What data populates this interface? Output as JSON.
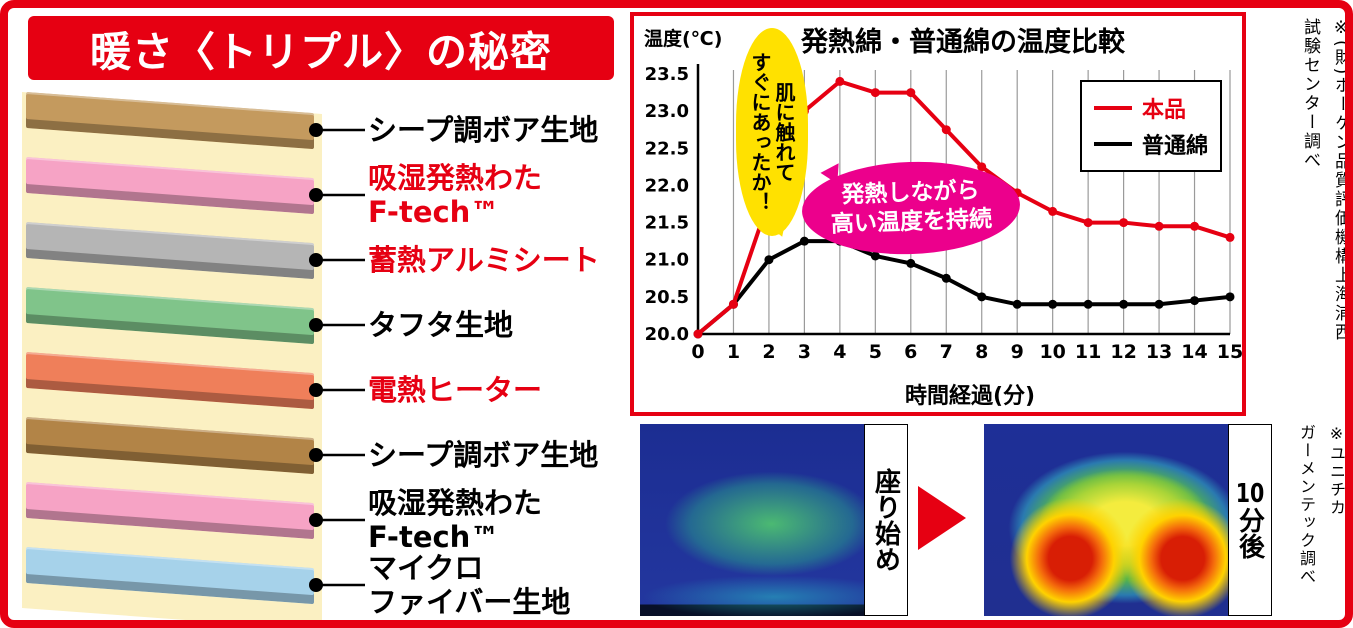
{
  "colors": {
    "accent_red": "#e60012",
    "cream_backing": "#fbf0c2",
    "yellow_bubble": "#ffe100",
    "pink_bubble": "#ec008c"
  },
  "header": {
    "title": "暖さ〈トリプル〉の秘密"
  },
  "layer_diagram": {
    "layers": [
      {
        "lines": [
          "シープ調ボア生地"
        ],
        "color": "#c49a5e",
        "label_color": "#000000"
      },
      {
        "lines": [
          "吸湿発熱わた",
          "F-tech™"
        ],
        "color": "#f6a3c5",
        "label_color": "#e60012"
      },
      {
        "lines": [
          "蓄熱アルミシート"
        ],
        "color": "#b5b5b5",
        "label_color": "#e60012"
      },
      {
        "lines": [
          "タフタ生地"
        ],
        "color": "#80c48a",
        "label_color": "#000000"
      },
      {
        "lines": [
          "電熱ヒーター"
        ],
        "color": "#ef7f5a",
        "label_color": "#e60012"
      },
      {
        "lines": [
          "シープ調ボア生地"
        ],
        "color": "#b28447",
        "label_color": "#000000"
      },
      {
        "lines": [
          "吸湿発熱わた",
          "F-tech™"
        ],
        "color": "#f6a3c5",
        "label_color": "#000000"
      },
      {
        "lines": [
          "マイクロ",
          "ファイバー生地"
        ],
        "color": "#a6d2ea",
        "label_color": "#000000"
      }
    ]
  },
  "chart_data": {
    "type": "line",
    "title": "発熱綿・普通綿の温度比較",
    "ylabel": "温度(℃)",
    "xlabel": "時間経過(分)",
    "x": [
      0,
      1,
      2,
      3,
      4,
      5,
      6,
      7,
      8,
      9,
      10,
      11,
      12,
      13,
      14,
      15
    ],
    "ylim": [
      20.0,
      23.5
    ],
    "yticks": [
      20.0,
      20.5,
      21.0,
      21.5,
      22.0,
      22.5,
      23.0,
      23.5
    ],
    "grid": "vertical",
    "legend_position": "top-right",
    "series": [
      {
        "name": "本品",
        "color": "#e60012",
        "values": [
          20.0,
          20.4,
          21.8,
          23.0,
          23.4,
          23.25,
          23.25,
          22.75,
          22.25,
          21.9,
          21.65,
          21.5,
          21.5,
          21.45,
          21.45,
          21.3
        ]
      },
      {
        "name": "普通綿",
        "color": "#000000",
        "values": [
          20.0,
          20.4,
          21.0,
          21.25,
          21.25,
          21.05,
          20.95,
          20.75,
          20.5,
          20.4,
          20.4,
          20.4,
          20.4,
          20.4,
          20.45,
          20.5
        ]
      }
    ],
    "annotations": [
      {
        "id": "touch-callout",
        "lines": [
          "肌に触れて",
          "すぐにあったか！"
        ],
        "bg": "#ffe100",
        "text_color": "#000000"
      },
      {
        "id": "sustain-callout",
        "lines": [
          "発熱しながら",
          "高い温度を持続"
        ],
        "bg": "#ec008c",
        "text_color": "#ffffff"
      }
    ]
  },
  "chart_note": {
    "lines": [
      "※(財)ボーケン品質評価機構上海浦西",
      "試験センター調べ"
    ]
  },
  "thermal": {
    "left_label": "座り始め",
    "right_label_number": "10",
    "right_label_suffix": "分後",
    "note_lines": [
      "※ユニチカ",
      "ガーメンテック調べ"
    ]
  }
}
